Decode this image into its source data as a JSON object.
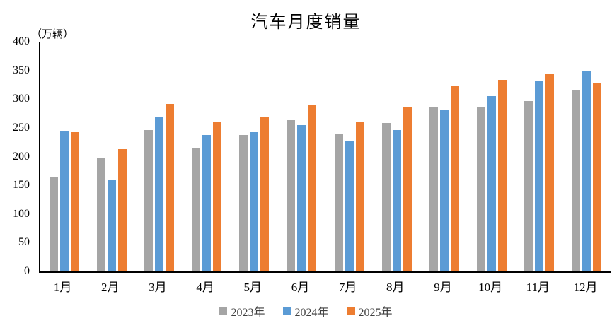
{
  "chart_data": {
    "type": "bar",
    "title": "汽车月度销量",
    "unit_label": "（万辆）",
    "categories": [
      "1月",
      "2月",
      "3月",
      "4月",
      "5月",
      "6月",
      "7月",
      "8月",
      "9月",
      "10月",
      "11月",
      "12月"
    ],
    "series": [
      {
        "name": "2023年",
        "color": "#A5A5A5",
        "values": [
          165,
          198,
          246,
          216,
          238,
          263,
          239,
          258,
          286,
          286,
          297,
          316
        ]
      },
      {
        "name": "2024年",
        "color": "#5B9BD5",
        "values": [
          245,
          160,
          270,
          237,
          243,
          255,
          227,
          246,
          282,
          305,
          332,
          349
        ]
      },
      {
        "name": "2025年",
        "color": "#ED7D31",
        "values": [
          243,
          213,
          292,
          260,
          269,
          291,
          260,
          286,
          323,
          334,
          344,
          328
        ]
      }
    ],
    "ylabel": "",
    "xlabel": "",
    "ylim": [
      0,
      400
    ],
    "ytick_step": 50,
    "yticks": [
      0,
      50,
      100,
      150,
      200,
      250,
      300,
      350,
      400
    ],
    "grid": false,
    "legend_position": "bottom"
  }
}
